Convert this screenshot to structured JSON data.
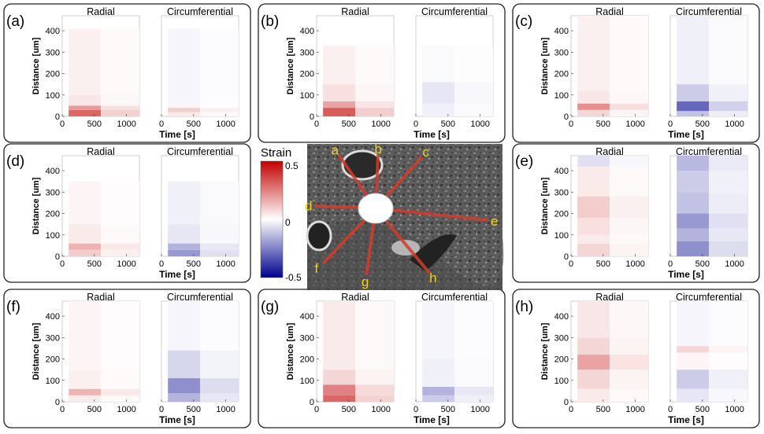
{
  "colorbar": {
    "title": "Strain",
    "max_label": "0.5",
    "mid_label": "0",
    "min_label": "-0.5",
    "range": [
      -0.5,
      0.5
    ]
  },
  "common": {
    "ylabel": "Distance [um]",
    "xlabel": "Time [s]",
    "col_titles": [
      "Radial",
      "Circumferential"
    ],
    "x_ticks": [
      "0",
      "500",
      "1000"
    ],
    "y_ticks": [
      "0",
      "100",
      "200",
      "300",
      "400"
    ]
  },
  "image_labels": [
    "a",
    "b",
    "c",
    "d",
    "e",
    "f",
    "g",
    "h"
  ],
  "chart_data": [
    {
      "id": "a",
      "panel_label": "(a)",
      "type": "heatmap",
      "x_range": [
        0,
        1200
      ],
      "y_range": [
        0,
        470
      ],
      "stim_end_s": 600,
      "extent_um": 410,
      "radial": [
        [
          0,
          30,
          0.3
        ],
        [
          30,
          50,
          0.2
        ],
        [
          50,
          100,
          0.05
        ],
        [
          100,
          410,
          0.03
        ]
      ],
      "circ": [
        [
          0,
          20,
          0.04
        ],
        [
          20,
          40,
          0.1
        ],
        [
          40,
          60,
          0.02
        ],
        [
          60,
          410,
          -0.02
        ]
      ]
    },
    {
      "id": "b",
      "panel_label": "(b)",
      "type": "heatmap",
      "x_range": [
        0,
        1200
      ],
      "y_range": [
        0,
        470
      ],
      "stim_end_s": 600,
      "extent_um": 330,
      "radial": [
        [
          0,
          40,
          0.32
        ],
        [
          40,
          70,
          0.18
        ],
        [
          70,
          150,
          0.06
        ],
        [
          150,
          330,
          0.03
        ]
      ],
      "circ": [
        [
          0,
          60,
          -0.03
        ],
        [
          60,
          160,
          -0.05
        ],
        [
          160,
          330,
          -0.01
        ]
      ]
    },
    {
      "id": "c",
      "panel_label": "(c)",
      "type": "heatmap",
      "x_range": [
        0,
        1200
      ],
      "y_range": [
        0,
        470
      ],
      "stim_end_s": 600,
      "extent_um": 470,
      "radial": [
        [
          0,
          30,
          0.08
        ],
        [
          30,
          60,
          0.22
        ],
        [
          60,
          120,
          0.05
        ],
        [
          120,
          470,
          0.03
        ]
      ],
      "circ": [
        [
          0,
          25,
          -0.12
        ],
        [
          25,
          70,
          -0.3
        ],
        [
          70,
          150,
          -0.1
        ],
        [
          150,
          470,
          -0.03
        ]
      ]
    },
    {
      "id": "d",
      "panel_label": "(d)",
      "type": "heatmap",
      "x_range": [
        0,
        1200
      ],
      "y_range": [
        0,
        470
      ],
      "stim_end_s": 600,
      "extent_um": 350,
      "radial": [
        [
          0,
          30,
          0.1
        ],
        [
          30,
          60,
          0.15
        ],
        [
          60,
          150,
          0.04
        ],
        [
          150,
          350,
          0.02
        ]
      ],
      "circ": [
        [
          0,
          30,
          -0.2
        ],
        [
          30,
          60,
          -0.15
        ],
        [
          60,
          150,
          -0.05
        ],
        [
          150,
          350,
          -0.03
        ]
      ]
    },
    {
      "id": "e",
      "panel_label": "(e)",
      "type": "heatmap",
      "x_range": [
        0,
        1200
      ],
      "y_range": [
        0,
        470
      ],
      "stim_end_s": 600,
      "extent_um": 470,
      "radial": [
        [
          0,
          60,
          0.08
        ],
        [
          60,
          100,
          0.04
        ],
        [
          100,
          180,
          0.06
        ],
        [
          180,
          280,
          0.1
        ],
        [
          280,
          420,
          0.04
        ],
        [
          420,
          470,
          -0.06
        ]
      ],
      "circ": [
        [
          0,
          70,
          -0.22
        ],
        [
          70,
          130,
          -0.15
        ],
        [
          130,
          200,
          -0.2
        ],
        [
          200,
          300,
          -0.12
        ],
        [
          300,
          400,
          -0.1
        ],
        [
          400,
          470,
          -0.14
        ]
      ]
    },
    {
      "id": "f",
      "panel_label": "(f)",
      "type": "heatmap",
      "x_range": [
        0,
        1200
      ],
      "y_range": [
        0,
        470
      ],
      "stim_end_s": 600,
      "extent_um": 470,
      "radial": [
        [
          0,
          30,
          0.04
        ],
        [
          30,
          60,
          0.15
        ],
        [
          60,
          150,
          0.03
        ],
        [
          150,
          470,
          0.02
        ]
      ],
      "circ": [
        [
          0,
          40,
          -0.15
        ],
        [
          40,
          110,
          -0.22
        ],
        [
          110,
          240,
          -0.08
        ],
        [
          240,
          470,
          -0.02
        ]
      ]
    },
    {
      "id": "g",
      "panel_label": "(g)",
      "type": "heatmap",
      "x_range": [
        0,
        1200
      ],
      "y_range": [
        0,
        470
      ],
      "stim_end_s": 600,
      "extent_um": 470,
      "radial": [
        [
          0,
          30,
          0.3
        ],
        [
          30,
          80,
          0.25
        ],
        [
          80,
          150,
          0.08
        ],
        [
          150,
          470,
          0.04
        ]
      ],
      "circ": [
        [
          0,
          30,
          -0.1
        ],
        [
          30,
          70,
          -0.15
        ],
        [
          70,
          200,
          -0.03
        ],
        [
          200,
          470,
          -0.02
        ]
      ]
    },
    {
      "id": "h",
      "panel_label": "(h)",
      "type": "heatmap",
      "x_range": [
        0,
        1200
      ],
      "y_range": [
        0,
        470
      ],
      "stim_end_s": 600,
      "extent_um": 470,
      "radial": [
        [
          0,
          60,
          0.04
        ],
        [
          60,
          150,
          0.08
        ],
        [
          150,
          220,
          0.18
        ],
        [
          220,
          300,
          0.08
        ],
        [
          300,
          470,
          0.05
        ]
      ],
      "circ": [
        [
          0,
          60,
          -0.05
        ],
        [
          60,
          150,
          -0.1
        ],
        [
          150,
          230,
          0.02
        ],
        [
          230,
          260,
          0.08
        ],
        [
          260,
          470,
          -0.02
        ]
      ]
    }
  ]
}
